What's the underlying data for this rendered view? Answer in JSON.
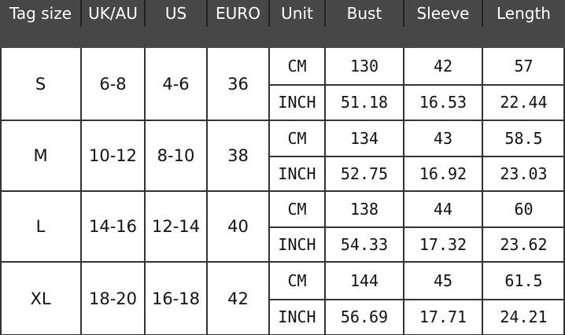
{
  "header": [
    "Tag size",
    "UK/AU",
    "US",
    "EURO",
    "Unit",
    "Bust",
    "Sleeve",
    "Length"
  ],
  "rows": [
    {
      "tag": "S",
      "uk": "6-8",
      "us": "4-6",
      "euro": "36",
      "cm": {
        "unit": "CM",
        "bust": "130",
        "sleeve": "42",
        "length": "57"
      },
      "inch": {
        "unit": "INCH",
        "bust": "51.18",
        "sleeve": "16.53",
        "length": "22.44"
      }
    },
    {
      "tag": "M",
      "uk": "10-12",
      "us": "8-10",
      "euro": "38",
      "cm": {
        "unit": "CM",
        "bust": "134",
        "sleeve": "43",
        "length": "58.5"
      },
      "inch": {
        "unit": "INCH",
        "bust": "52.75",
        "sleeve": "16.92",
        "length": "23.03"
      }
    },
    {
      "tag": "L",
      "uk": "14-16",
      "us": "12-14",
      "euro": "40",
      "cm": {
        "unit": "CM",
        "bust": "138",
        "sleeve": "44",
        "length": "60"
      },
      "inch": {
        "unit": "INCH",
        "bust": "54.33",
        "sleeve": "17.32",
        "length": "23.62"
      }
    },
    {
      "tag": "XL",
      "uk": "18-20",
      "us": "16-18",
      "euro": "42",
      "cm": {
        "unit": "CM",
        "bust": "144",
        "sleeve": "45",
        "length": "61.5"
      },
      "inch": {
        "unit": "INCH",
        "bust": "56.69",
        "sleeve": "17.71",
        "length": "24.21"
      }
    }
  ]
}
